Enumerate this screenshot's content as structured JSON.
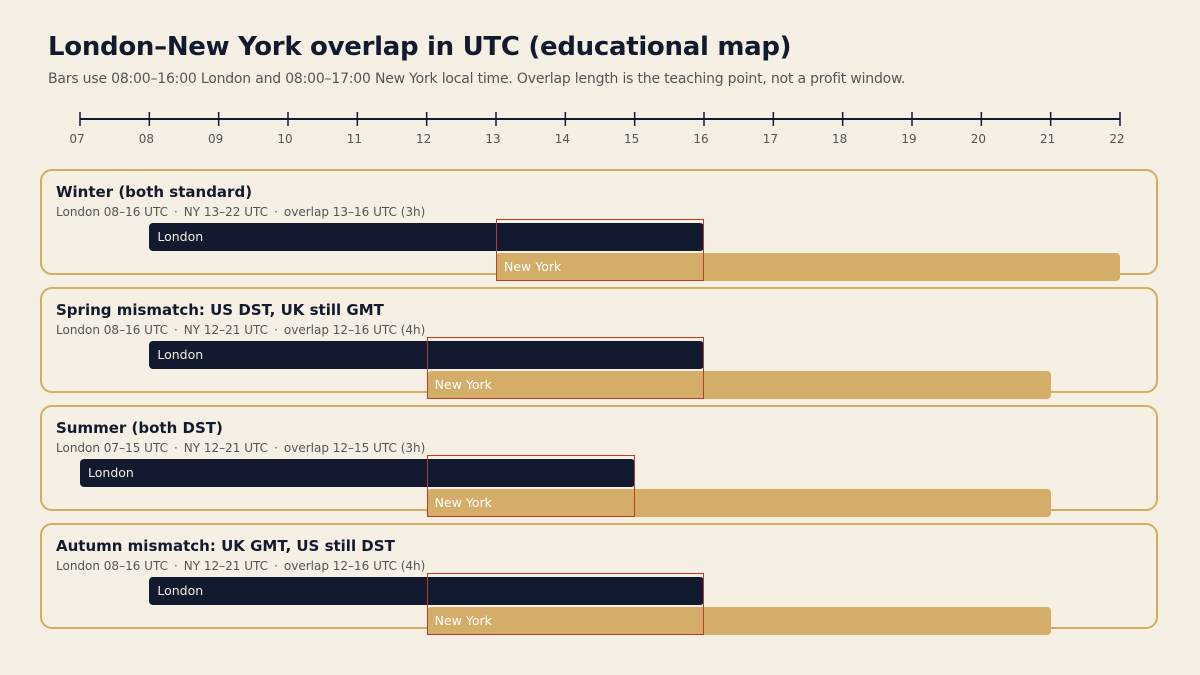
{
  "header": {
    "title": "London–New York overlap in UTC (educational map)",
    "subtitle": "Bars use 08:00–16:00 London and 08:00–17:00 New York local time. Overlap length is the teaching point, not a profit window."
  },
  "colors": {
    "background": "#f6efe3",
    "london": "#111a2e",
    "new_york": "#d4ad68",
    "panel_border": "#d4ad62",
    "overlap_outline": "#c0392b"
  },
  "chart_data": {
    "type": "bar",
    "axis": {
      "min": 7,
      "max": 22,
      "tick_labels": [
        "07",
        "08",
        "09",
        "10",
        "11",
        "12",
        "13",
        "14",
        "15",
        "16",
        "17",
        "18",
        "19",
        "20",
        "21",
        "22"
      ]
    },
    "scenarios": [
      {
        "title": "Winter (both standard)",
        "london_info": "London 08–16 UTC",
        "ny_info": "NY 13–22 UTC",
        "overlap_info": "overlap 13–16 UTC (3h)",
        "london_label": "London",
        "ny_label": "New York",
        "london": [
          8,
          16
        ],
        "new_york": [
          13,
          22
        ],
        "overlap": [
          13,
          16
        ]
      },
      {
        "title": "Spring mismatch: US DST, UK still GMT",
        "london_info": "London 08–16 UTC",
        "ny_info": "NY 12–21 UTC",
        "overlap_info": "overlap 12–16 UTC (4h)",
        "london_label": "London",
        "ny_label": "New York",
        "london": [
          8,
          16
        ],
        "new_york": [
          12,
          21
        ],
        "overlap": [
          12,
          16
        ]
      },
      {
        "title": "Summer (both DST)",
        "london_info": "London 07–15 UTC",
        "ny_info": "NY 12–21 UTC",
        "overlap_info": "overlap 12–15 UTC (3h)",
        "london_label": "London",
        "ny_label": "New York",
        "london": [
          7,
          15
        ],
        "new_york": [
          12,
          21
        ],
        "overlap": [
          12,
          15
        ]
      },
      {
        "title": "Autumn mismatch: UK GMT, US still DST",
        "london_info": "London 08–16 UTC",
        "ny_info": "NY 12–21 UTC",
        "overlap_info": "overlap 12–16 UTC (4h)",
        "london_label": "London",
        "ny_label": "New York",
        "london": [
          8,
          16
        ],
        "new_york": [
          12,
          21
        ],
        "overlap": [
          12,
          16
        ]
      }
    ]
  }
}
